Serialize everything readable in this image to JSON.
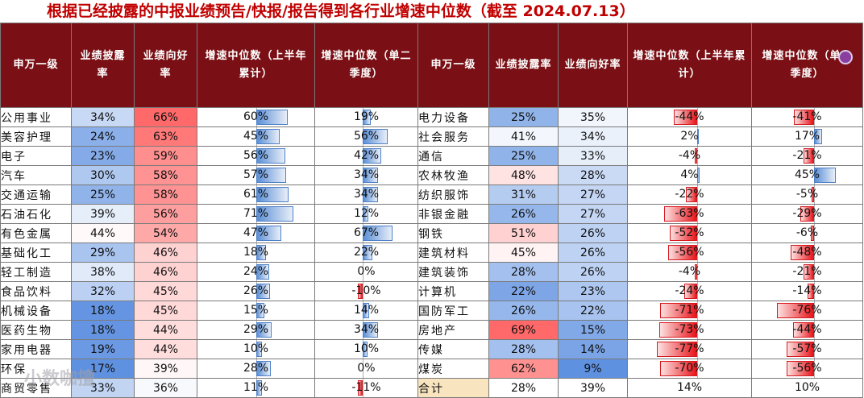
{
  "title": "根据已经披露的中报业绩预告/快报/报告得到各行业增速中位数（截至 2024.07.13）",
  "headers": {
    "industry": "申万一级",
    "disclosure": "业绩披露率",
    "positive": "业绩向好率",
    "growth_h1": "增速中位数（上半年累计）",
    "growth_q2": "增速中位数（单二季度）"
  },
  "watermark": "小数咖擅",
  "colors": {
    "header_bg": "#7a1015",
    "title": "#c00000",
    "bar_pos": "#5b8fd6",
    "bar_neg": "#e8141a",
    "total_bg": "#f8e4bf"
  },
  "left_rows": [
    {
      "name": "公用事业",
      "disc": "34%",
      "pos": "66%",
      "h1": "60%",
      "q2": "19%"
    },
    {
      "name": "美容护理",
      "disc": "24%",
      "pos": "63%",
      "h1": "45%",
      "q2": "56%"
    },
    {
      "name": "电子",
      "disc": "23%",
      "pos": "59%",
      "h1": "56%",
      "q2": "42%"
    },
    {
      "name": "汽车",
      "disc": "30%",
      "pos": "58%",
      "h1": "57%",
      "q2": "34%"
    },
    {
      "name": "交通运输",
      "disc": "25%",
      "pos": "58%",
      "h1": "61%",
      "q2": "34%"
    },
    {
      "name": "石油石化",
      "disc": "39%",
      "pos": "56%",
      "h1": "71%",
      "q2": "12%"
    },
    {
      "name": "有色金属",
      "disc": "44%",
      "pos": "54%",
      "h1": "47%",
      "q2": "67%"
    },
    {
      "name": "基础化工",
      "disc": "29%",
      "pos": "46%",
      "h1": "18%",
      "q2": "22%"
    },
    {
      "name": "轻工制造",
      "disc": "38%",
      "pos": "46%",
      "h1": "24%",
      "q2": "0%"
    },
    {
      "name": "食品饮料",
      "disc": "32%",
      "pos": "45%",
      "h1": "26%",
      "q2": "-10%"
    },
    {
      "name": "机械设备",
      "disc": "18%",
      "pos": "45%",
      "h1": "15%",
      "q2": "14%"
    },
    {
      "name": "医药生物",
      "disc": "18%",
      "pos": "44%",
      "h1": "29%",
      "q2": "34%"
    },
    {
      "name": "家用电器",
      "disc": "19%",
      "pos": "44%",
      "h1": "10%",
      "q2": "10%"
    },
    {
      "name": "环保",
      "disc": "17%",
      "pos": "39%",
      "h1": "28%",
      "q2": "0%"
    },
    {
      "name": "商贸零售",
      "disc": "33%",
      "pos": "36%",
      "h1": "11%",
      "q2": "-11%"
    }
  ],
  "right_rows": [
    {
      "name": "电力设备",
      "disc": "25%",
      "pos": "35%",
      "h1": "-44%",
      "q2": "-41%"
    },
    {
      "name": "社会服务",
      "disc": "41%",
      "pos": "34%",
      "h1": "2%",
      "q2": "17%"
    },
    {
      "name": "通信",
      "disc": "25%",
      "pos": "33%",
      "h1": "-4%",
      "q2": "-21%"
    },
    {
      "name": "农林牧渔",
      "disc": "48%",
      "pos": "28%",
      "h1": "4%",
      "q2": "45%"
    },
    {
      "name": "纺织服饰",
      "disc": "31%",
      "pos": "27%",
      "h1": "-22%",
      "q2": "-5%"
    },
    {
      "name": "非银金融",
      "disc": "26%",
      "pos": "27%",
      "h1": "-63%",
      "q2": "-29%"
    },
    {
      "name": "钢铁",
      "disc": "51%",
      "pos": "26%",
      "h1": "-52%",
      "q2": "-6%"
    },
    {
      "name": "建筑材料",
      "disc": "45%",
      "pos": "26%",
      "h1": "-56%",
      "q2": "-48%"
    },
    {
      "name": "建筑装饰",
      "disc": "28%",
      "pos": "26%",
      "h1": "-4%",
      "q2": "-21%"
    },
    {
      "name": "计算机",
      "disc": "22%",
      "pos": "23%",
      "h1": "-24%",
      "q2": "-14%"
    },
    {
      "name": "国防军工",
      "disc": "26%",
      "pos": "22%",
      "h1": "-71%",
      "q2": "-76%"
    },
    {
      "name": "房地产",
      "disc": "69%",
      "pos": "15%",
      "h1": "-73%",
      "q2": "-44%"
    },
    {
      "name": "传媒",
      "disc": "28%",
      "pos": "14%",
      "h1": "-77%",
      "q2": "-57%"
    },
    {
      "name": "煤炭",
      "disc": "62%",
      "pos": "9%",
      "h1": "-70%",
      "q2": "-56%"
    },
    {
      "name": "合计",
      "disc": "28%",
      "pos": "39%",
      "h1": "14%",
      "q2": "10%"
    }
  ]
}
